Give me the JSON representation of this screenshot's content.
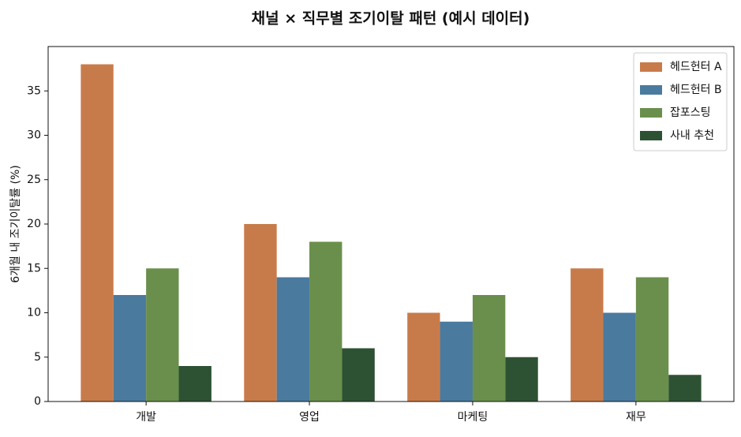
{
  "chart_data": {
    "type": "bar",
    "title": "채널 × 직무별 조기이탈 패턴 (예시 데이터)",
    "y_label": "6개월 내 조기이탈률 (%)",
    "categories": [
      "개발",
      "영업",
      "마케팅",
      "재무"
    ],
    "series": [
      {
        "name": "헤드헌터 A",
        "color": "#c87b4a",
        "values": [
          38,
          20,
          10,
          15
        ]
      },
      {
        "name": "헤드헌터 B",
        "color": "#4a7a9e",
        "values": [
          12,
          14,
          9,
          10
        ]
      },
      {
        "name": "잡포스팅",
        "color": "#6a8f4c",
        "values": [
          15,
          18,
          12,
          14
        ]
      },
      {
        "name": "사내 추천",
        "color": "#2d5233",
        "values": [
          4,
          6,
          5,
          3
        ]
      }
    ],
    "ylim": [
      0,
      40
    ],
    "yticks": [
      0,
      5,
      10,
      15,
      20,
      25,
      30,
      35
    ],
    "legend": "upper-right"
  }
}
